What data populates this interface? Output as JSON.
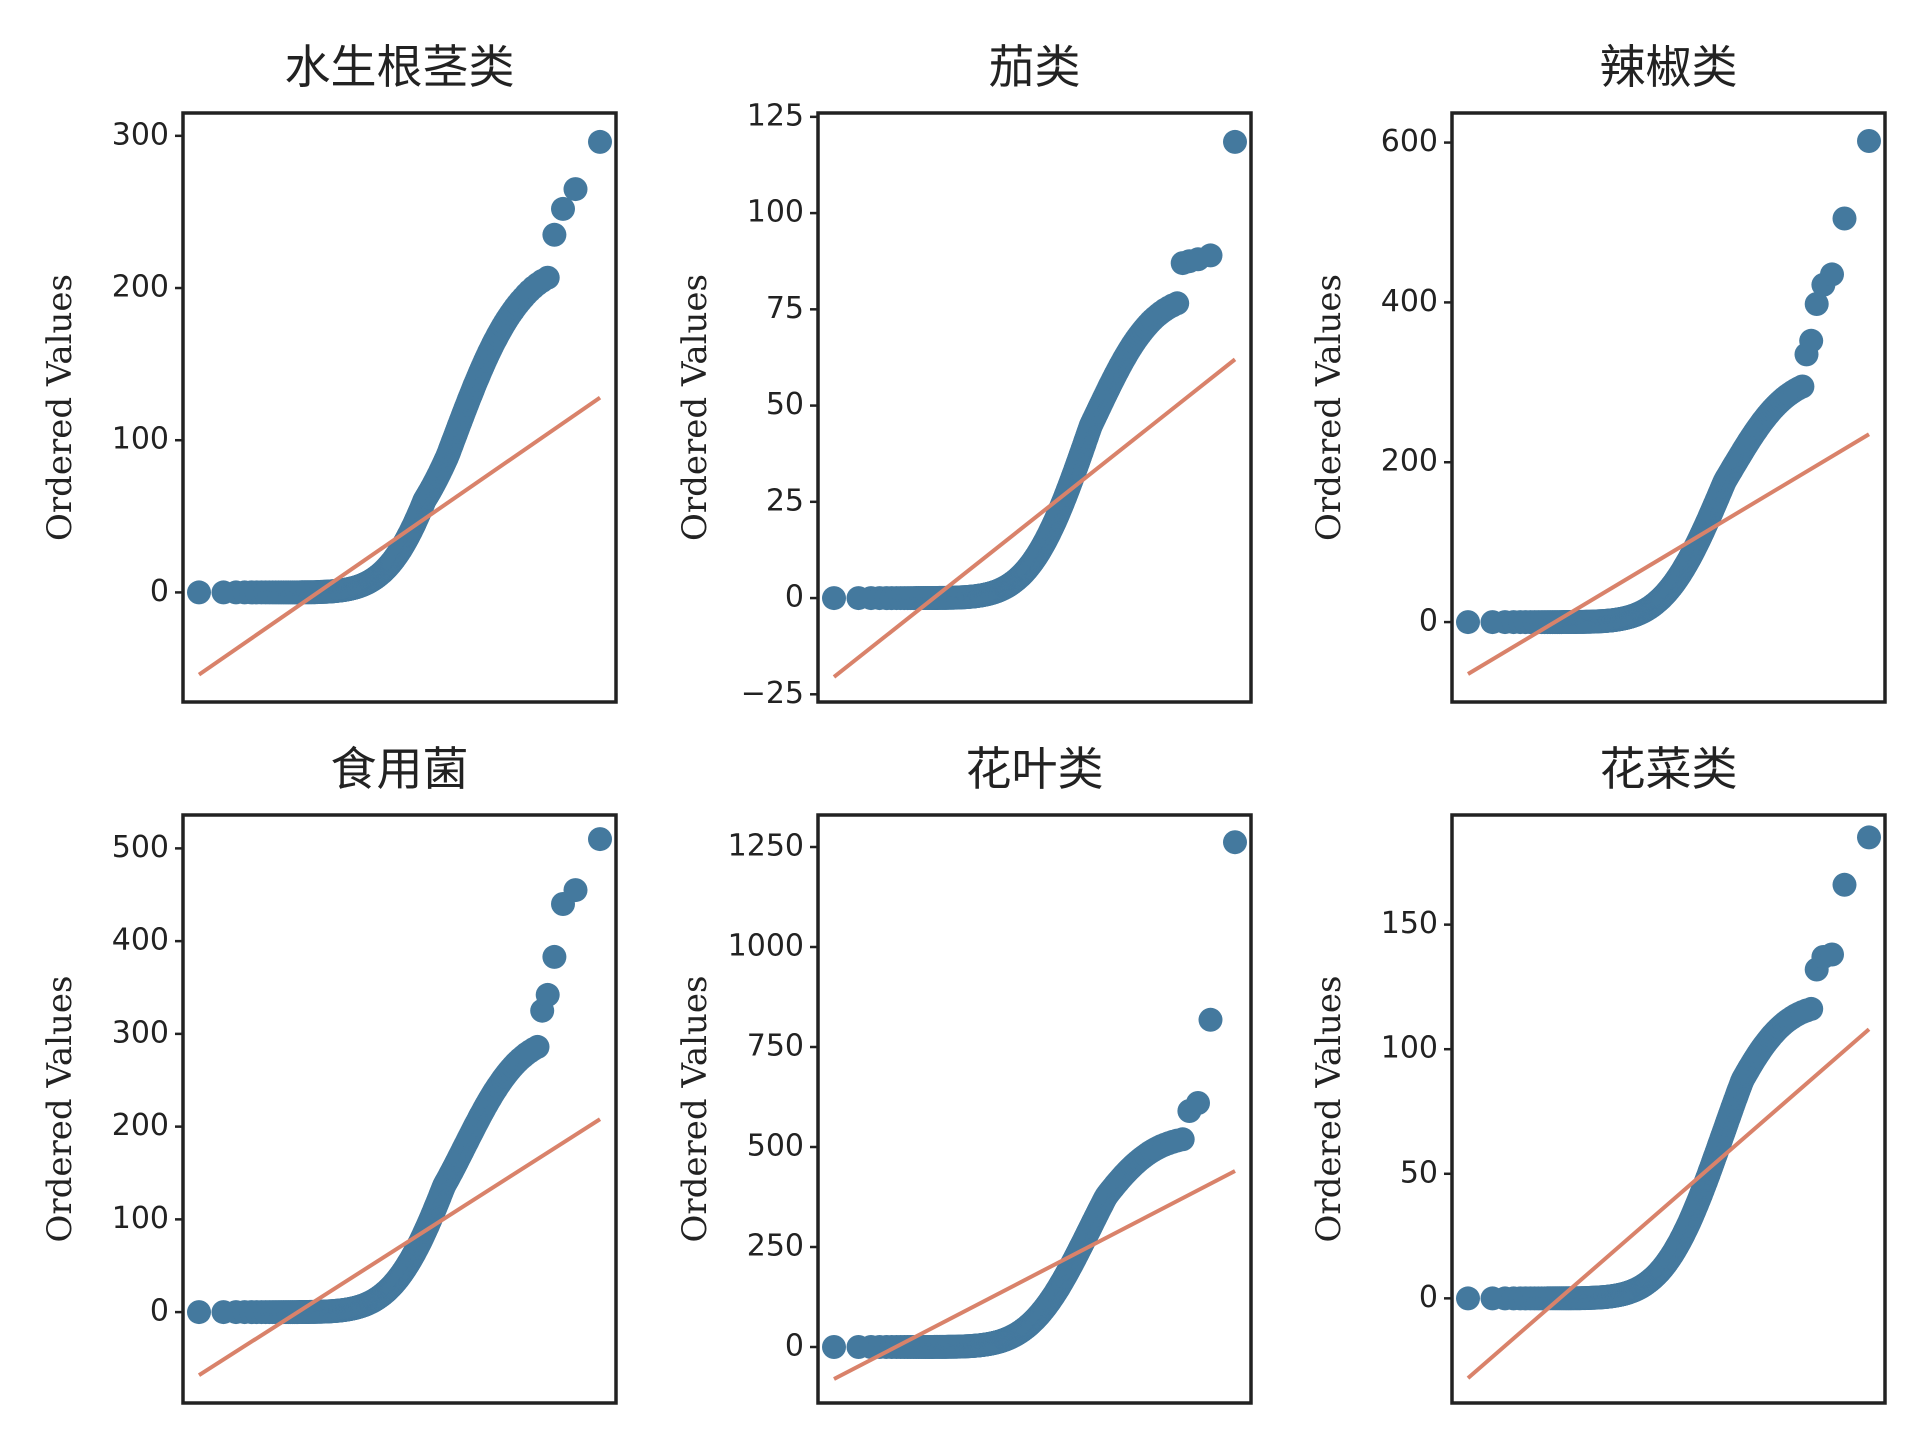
{
  "chart_data": [
    {
      "type": "scatter",
      "title": "水生根茎类",
      "ylabel": "Ordered Values",
      "ylim": [
        -72,
        315
      ],
      "yticks": [
        0,
        100,
        200,
        300
      ],
      "ytick_labels": [
        "0",
        "100",
        "200",
        "300"
      ],
      "fit_line": [
        -54,
        128
      ],
      "outlier_values": [
        235,
        252,
        265,
        296
      ]
    },
    {
      "type": "scatter",
      "title": "茄类",
      "ylabel": "Ordered Values",
      "ylim": [
        -27,
        126
      ],
      "yticks": [
        -25,
        0,
        25,
        50,
        75,
        100,
        125
      ],
      "ytick_labels": [
        "−25",
        "0",
        "25",
        "50",
        "75",
        "100",
        "125"
      ],
      "fit_line": [
        -20.5,
        62
      ],
      "outlier_values": [
        87,
        87.5,
        88,
        89,
        118.5
      ]
    },
    {
      "type": "scatter",
      "title": "辣椒类",
      "ylabel": "Ordered Values",
      "ylim": [
        -100,
        637
      ],
      "yticks": [
        0,
        200,
        400,
        600
      ],
      "ytick_labels": [
        "0",
        "200",
        "400",
        "600"
      ],
      "fit_line": [
        -65,
        235
      ],
      "outlier_values": [
        335,
        352,
        398,
        422,
        435,
        505,
        602
      ]
    },
    {
      "type": "scatter",
      "title": "食用菌",
      "ylabel": "Ordered Values",
      "ylim": [
        -98,
        536
      ],
      "yticks": [
        0,
        100,
        200,
        300,
        400,
        500
      ],
      "ytick_labels": [
        "0",
        "100",
        "200",
        "300",
        "400",
        "500"
      ],
      "fit_line": [
        -68,
        208
      ],
      "outlier_values": [
        325,
        342,
        383,
        440,
        455,
        510
      ]
    },
    {
      "type": "scatter",
      "title": "花叶类",
      "ylabel": "Ordered Values",
      "ylim": [
        -140,
        1330
      ],
      "yticks": [
        0,
        250,
        500,
        750,
        1000,
        1250
      ],
      "ytick_labels": [
        "0",
        "250",
        "500",
        "750",
        "1000",
        "1250"
      ],
      "fit_line": [
        -80,
        440
      ],
      "outlier_values": [
        590,
        610,
        818,
        1262
      ]
    },
    {
      "type": "scatter",
      "title": "花菜类",
      "ylabel": "Ordered Values",
      "ylim": [
        -42,
        194
      ],
      "yticks": [
        0,
        50,
        100,
        150
      ],
      "ytick_labels": [
        "0",
        "50",
        "100",
        "150"
      ],
      "fit_line": [
        -32,
        108
      ],
      "outlier_values": [
        132,
        137,
        138,
        166,
        185
      ]
    }
  ],
  "colors": {
    "points": "#44799e",
    "fit_line": "#d9826a",
    "frame": "#222222"
  }
}
